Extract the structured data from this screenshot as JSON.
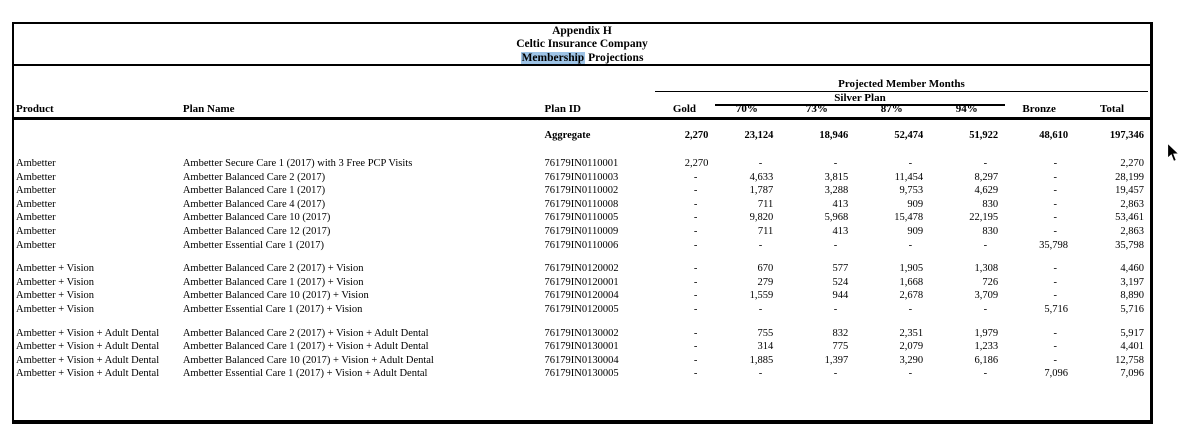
{
  "title": {
    "line1": "Appendix H",
    "line2": "Celtic Insurance Company",
    "line3_highlight": "Membership",
    "line3_rest": " Projections"
  },
  "header": {
    "group_label": "Projected Member Months",
    "silver_label": "Silver Plan",
    "columns": [
      "Product",
      "Plan Name",
      "Plan ID",
      "Gold",
      "70%",
      "73%",
      "87%",
      "94%",
      "Bronze",
      "Total"
    ]
  },
  "aggregate": {
    "label": "Aggregate",
    "values": [
      "2,270",
      "23,124",
      "18,946",
      "52,474",
      "51,922",
      "48,610",
      "197,346"
    ]
  },
  "groups": [
    {
      "rows": [
        {
          "product": "Ambetter",
          "plan_name": "Ambetter Secure Care 1 (2017) with 3 Free PCP Visits",
          "plan_id": "76179IN0110001",
          "values": [
            "2,270",
            "-",
            "-",
            "-",
            "-",
            "-",
            "2,270"
          ]
        },
        {
          "product": "Ambetter",
          "plan_name": "Ambetter Balanced Care 2 (2017)",
          "plan_id": "76179IN0110003",
          "values": [
            "-",
            "4,633",
            "3,815",
            "11,454",
            "8,297",
            "-",
            "28,199"
          ]
        },
        {
          "product": "Ambetter",
          "plan_name": "Ambetter Balanced Care 1 (2017)",
          "plan_id": "76179IN0110002",
          "values": [
            "-",
            "1,787",
            "3,288",
            "9,753",
            "4,629",
            "-",
            "19,457"
          ]
        },
        {
          "product": "Ambetter",
          "plan_name": "Ambetter Balanced Care 4 (2017)",
          "plan_id": "76179IN0110008",
          "values": [
            "-",
            "711",
            "413",
            "909",
            "830",
            "-",
            "2,863"
          ]
        },
        {
          "product": "Ambetter",
          "plan_name": "Ambetter Balanced Care 10 (2017)",
          "plan_id": "76179IN0110005",
          "values": [
            "-",
            "9,820",
            "5,968",
            "15,478",
            "22,195",
            "-",
            "53,461"
          ]
        },
        {
          "product": "Ambetter",
          "plan_name": "Ambetter Balanced Care 12 (2017)",
          "plan_id": "76179IN0110009",
          "values": [
            "-",
            "711",
            "413",
            "909",
            "830",
            "-",
            "2,863"
          ]
        },
        {
          "product": "Ambetter",
          "plan_name": "Ambetter Essential Care 1 (2017)",
          "plan_id": "76179IN0110006",
          "values": [
            "-",
            "-",
            "-",
            "-",
            "-",
            "35,798",
            "35,798"
          ]
        }
      ]
    },
    {
      "rows": [
        {
          "product": "Ambetter + Vision",
          "plan_name": "Ambetter Balanced Care 2 (2017) + Vision",
          "plan_id": "76179IN0120002",
          "values": [
            "-",
            "670",
            "577",
            "1,905",
            "1,308",
            "-",
            "4,460"
          ]
        },
        {
          "product": "Ambetter + Vision",
          "plan_name": "Ambetter Balanced Care 1 (2017) + Vision",
          "plan_id": "76179IN0120001",
          "values": [
            "-",
            "279",
            "524",
            "1,668",
            "726",
            "-",
            "3,197"
          ]
        },
        {
          "product": "Ambetter + Vision",
          "plan_name": "Ambetter Balanced Care 10 (2017) + Vision",
          "plan_id": "76179IN0120004",
          "values": [
            "-",
            "1,559",
            "944",
            "2,678",
            "3,709",
            "-",
            "8,890"
          ]
        },
        {
          "product": "Ambetter + Vision",
          "plan_name": "Ambetter Essential Care 1 (2017) + Vision",
          "plan_id": "76179IN0120005",
          "values": [
            "-",
            "-",
            "-",
            "-",
            "-",
            "5,716",
            "5,716"
          ]
        }
      ]
    },
    {
      "rows": [
        {
          "product": "Ambetter + Vision + Adult Dental",
          "plan_name": "Ambetter Balanced Care 2 (2017) + Vision + Adult Dental",
          "plan_id": "76179IN0130002",
          "values": [
            "-",
            "755",
            "832",
            "2,351",
            "1,979",
            "-",
            "5,917"
          ]
        },
        {
          "product": "Ambetter + Vision + Adult Dental",
          "plan_name": "Ambetter Balanced Care 1 (2017) + Vision + Adult Dental",
          "plan_id": "76179IN0130001",
          "values": [
            "-",
            "314",
            "775",
            "2,079",
            "1,233",
            "-",
            "4,401"
          ]
        },
        {
          "product": "Ambetter + Vision + Adult Dental",
          "plan_name": "Ambetter Balanced Care 10 (2017) + Vision + Adult Dental",
          "plan_id": "76179IN0130004",
          "values": [
            "-",
            "1,885",
            "1,397",
            "3,290",
            "6,186",
            "-",
            "12,758"
          ]
        },
        {
          "product": "Ambetter + Vision + Adult Dental",
          "plan_name": "Ambetter Essential Care 1 (2017) + Vision + Adult Dental",
          "plan_id": "76179IN0130005",
          "values": [
            "-",
            "-",
            "-",
            "-",
            "-",
            "7,096",
            "7,096"
          ]
        }
      ]
    }
  ],
  "colors": {
    "highlight": "#9dc3e6",
    "text": "#000000",
    "border": "#000000"
  }
}
